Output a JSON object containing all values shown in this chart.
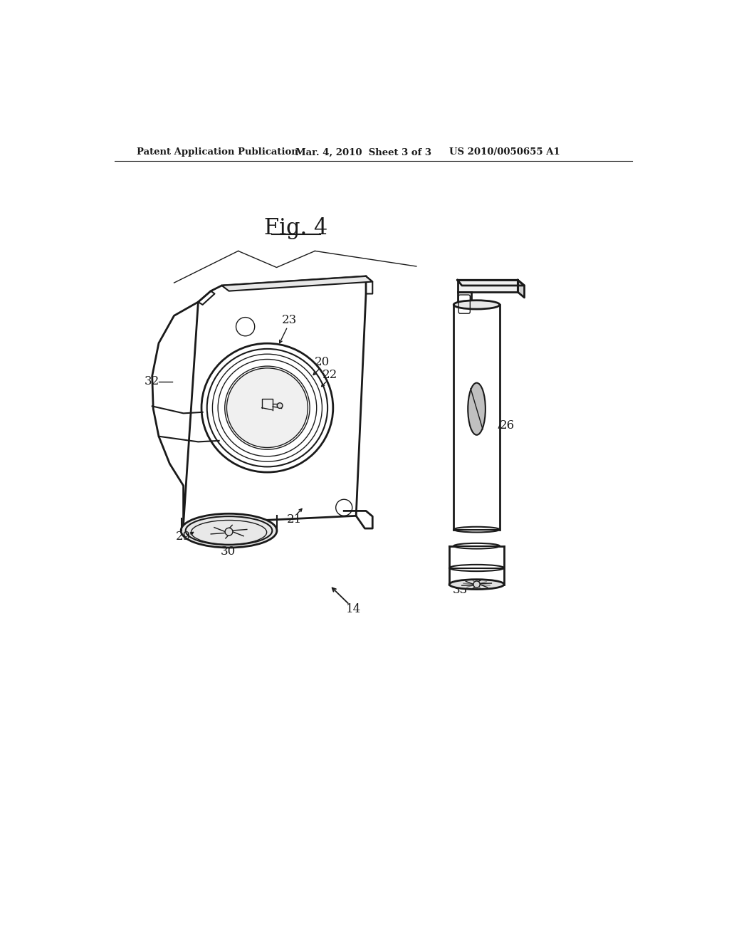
{
  "background_color": "#ffffff",
  "header_left": "Patent Application Publication",
  "header_mid": "Mar. 4, 2010  Sheet 3 of 3",
  "header_right": "US 2010/0050655 A1",
  "fig_label": "Fig. 4",
  "line_color": "#1a1a1a",
  "lw_thick": 2.0,
  "lw_main": 1.5,
  "lw_thin": 1.0,
  "fontsize_header": 9.5,
  "fontsize_fig": 22,
  "fontsize_label": 12
}
